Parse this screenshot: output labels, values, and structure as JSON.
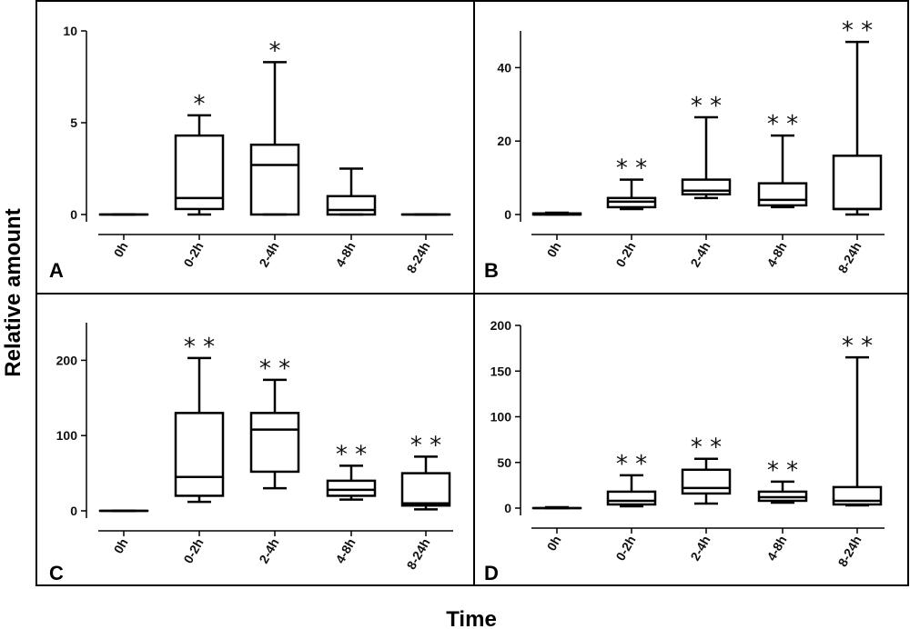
{
  "figure": {
    "ylabel": "Relative amount",
    "xlabel": "Time"
  },
  "chart_data": [
    {
      "type": "box",
      "panel": "A",
      "categories": [
        "0h",
        "0-2h",
        "2-4h",
        "4-8h",
        "8-24h"
      ],
      "ylim": [
        0,
        10
      ],
      "yticks": [
        0,
        5,
        10
      ],
      "boxes": [
        {
          "min": 0,
          "q1": 0,
          "median": 0,
          "q3": 0,
          "max": 0
        },
        {
          "min": 0,
          "q1": 0.3,
          "median": 0.9,
          "q3": 4.3,
          "max": 5.4
        },
        {
          "min": 0,
          "q1": 0,
          "median": 2.7,
          "q3": 3.8,
          "max": 8.3
        },
        {
          "min": 0,
          "q1": 0,
          "median": 0.25,
          "q3": 1.0,
          "max": 2.5
        },
        {
          "min": 0,
          "q1": 0,
          "median": 0,
          "q3": 0,
          "max": 0
        }
      ],
      "significance": [
        "",
        "*",
        "*",
        "",
        ""
      ]
    },
    {
      "type": "box",
      "panel": "B",
      "categories": [
        "0h",
        "0-2h",
        "2-4h",
        "4-8h",
        "8-24h"
      ],
      "ylim": [
        0,
        50
      ],
      "yticks": [
        0,
        20,
        40
      ],
      "boxes": [
        {
          "min": 0,
          "q1": 0,
          "median": 0,
          "q3": 0.3,
          "max": 0.5
        },
        {
          "min": 1.5,
          "q1": 2,
          "median": 3.5,
          "q3": 4.5,
          "max": 9.5
        },
        {
          "min": 4.5,
          "q1": 5.5,
          "median": 6.5,
          "q3": 9.5,
          "max": 26.5
        },
        {
          "min": 2,
          "q1": 2.5,
          "median": 4,
          "q3": 8.5,
          "max": 21.5
        },
        {
          "min": 0,
          "q1": 1.5,
          "median": 1.5,
          "q3": 16,
          "max": 47
        }
      ],
      "significance": [
        "",
        "**",
        "**",
        "**",
        "**"
      ]
    },
    {
      "type": "box",
      "panel": "C",
      "categories": [
        "0h",
        "0-2h",
        "2-4h",
        "4-8h",
        "8-24h"
      ],
      "ylim": [
        0,
        250
      ],
      "yticks": [
        0,
        100,
        200
      ],
      "boxes": [
        {
          "min": 0,
          "q1": 0,
          "median": 0,
          "q3": 0,
          "max": 0
        },
        {
          "min": 12,
          "q1": 20,
          "median": 45,
          "q3": 130,
          "max": 203
        },
        {
          "min": 30,
          "q1": 52,
          "median": 108,
          "q3": 130,
          "max": 174
        },
        {
          "min": 15,
          "q1": 20,
          "median": 28,
          "q3": 40,
          "max": 60
        },
        {
          "min": 2,
          "q1": 7,
          "median": 10,
          "q3": 50,
          "max": 72
        }
      ],
      "significance": [
        "",
        "**",
        "**",
        "**",
        "**"
      ]
    },
    {
      "type": "box",
      "panel": "D",
      "categories": [
        "0h",
        "0-2h",
        "2-4h",
        "4-8h",
        "8-24h"
      ],
      "ylim": [
        0,
        200
      ],
      "yticks": [
        0,
        50,
        100,
        150,
        200
      ],
      "boxes": [
        {
          "min": 0,
          "q1": 0,
          "median": 0,
          "q3": 0,
          "max": 1
        },
        {
          "min": 2,
          "q1": 4,
          "median": 8,
          "q3": 18,
          "max": 36
        },
        {
          "min": 5,
          "q1": 16,
          "median": 22,
          "q3": 42,
          "max": 54
        },
        {
          "min": 6,
          "q1": 8,
          "median": 12,
          "q3": 18,
          "max": 29
        },
        {
          "min": 3,
          "q1": 4,
          "median": 8,
          "q3": 23,
          "max": 165
        }
      ],
      "significance": [
        "",
        "**",
        "**",
        "**",
        "**"
      ]
    }
  ]
}
